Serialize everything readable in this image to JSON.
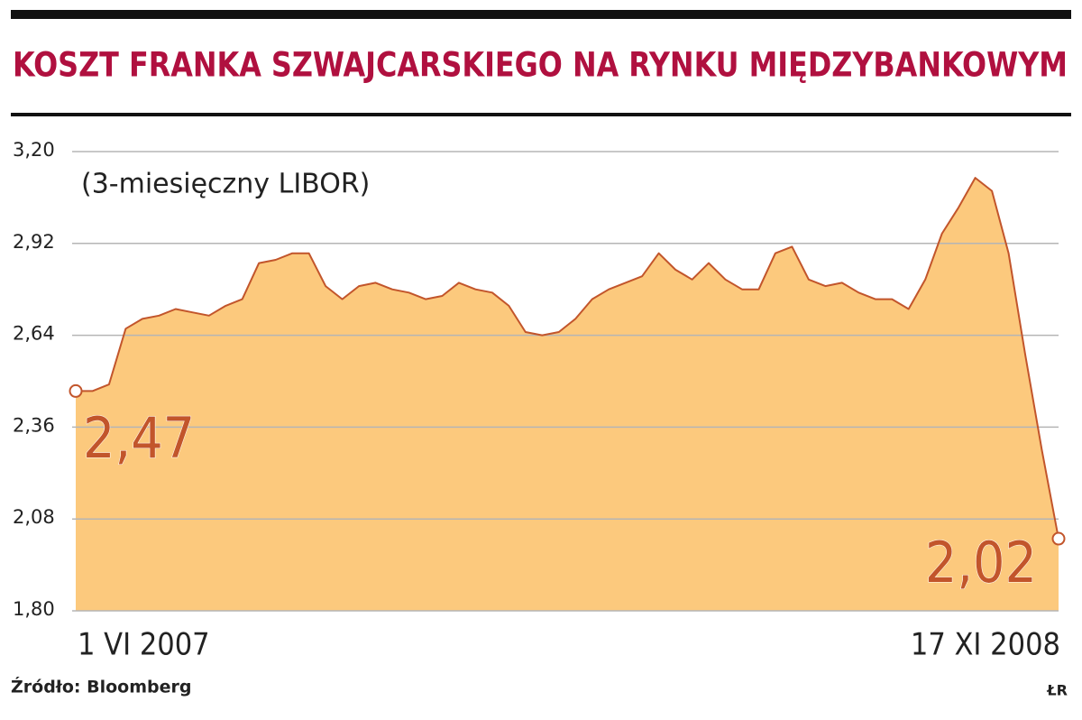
{
  "chart_data": {
    "type": "area",
    "title": "KOSZT FRANKA SZWAJCARSKIEGO NA RYNKU MIĘDZYBANKOWYM",
    "subtitle": "(3-miesięczny LIBOR)",
    "source": "Źródło: Bloomberg",
    "credit": "ŁR",
    "categories": [
      "1 VI 2007",
      null,
      null,
      null,
      null,
      null,
      null,
      null,
      null,
      null,
      null,
      null,
      null,
      null,
      null,
      null,
      null,
      null,
      null,
      null,
      null,
      null,
      null,
      null,
      null,
      null,
      null,
      null,
      null,
      null,
      null,
      null,
      null,
      null,
      null,
      null,
      null,
      null,
      null,
      null,
      null,
      null,
      null,
      null,
      null,
      null,
      null,
      null,
      null,
      null,
      null,
      null,
      null,
      null,
      null,
      null,
      null,
      null,
      null,
      "17 XI 2008"
    ],
    "values": [
      2.47,
      2.47,
      2.49,
      2.66,
      2.69,
      2.7,
      2.72,
      2.71,
      2.7,
      2.73,
      2.75,
      2.86,
      2.87,
      2.89,
      2.89,
      2.79,
      2.75,
      2.79,
      2.8,
      2.78,
      2.77,
      2.75,
      2.76,
      2.8,
      2.78,
      2.77,
      2.73,
      2.65,
      2.64,
      2.65,
      2.69,
      2.75,
      2.78,
      2.8,
      2.82,
      2.89,
      2.84,
      2.81,
      2.86,
      2.81,
      2.78,
      2.78,
      2.89,
      2.91,
      2.81,
      2.79,
      2.8,
      2.77,
      2.75,
      2.75,
      2.72,
      2.81,
      2.95,
      3.03,
      3.12,
      3.08,
      2.89,
      2.58,
      2.29,
      2.02
    ],
    "value_labels": [
      "2,47",
      null,
      null,
      null,
      null,
      null,
      null,
      null,
      null,
      null,
      null,
      null,
      null,
      null,
      null,
      null,
      null,
      null,
      null,
      null,
      null,
      null,
      null,
      null,
      null,
      null,
      null,
      null,
      null,
      null,
      null,
      null,
      null,
      null,
      null,
      null,
      null,
      null,
      null,
      null,
      null,
      null,
      null,
      null,
      null,
      null,
      null,
      null,
      null,
      null,
      null,
      null,
      null,
      null,
      null,
      null,
      null,
      null,
      null,
      "2,02"
    ],
    "color": "#c2552b",
    "fill": "#fcc97d",
    "ylim": [
      1.8,
      3.2
    ],
    "yticks": [
      {
        "value": 1.8,
        "label": "1,80"
      },
      {
        "value": 2.08,
        "label": "2,08"
      },
      {
        "value": 2.36,
        "label": "2,36"
      },
      {
        "value": 2.64,
        "label": "2,64"
      },
      {
        "value": 2.92,
        "label": "2,92"
      },
      {
        "value": 3.2,
        "label": "3,20"
      }
    ],
    "grid": true
  }
}
